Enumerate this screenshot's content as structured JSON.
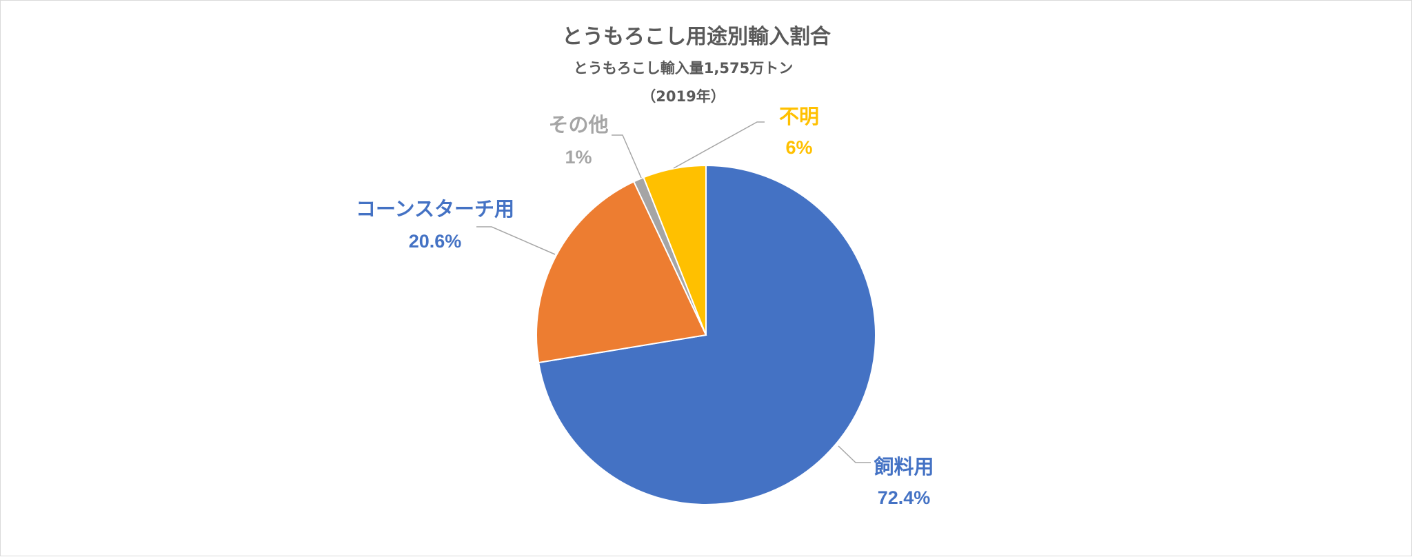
{
  "chart_data": {
    "type": "pie",
    "title": "とうもろこし用途別輸入割合",
    "subtitle": "とうもろこし輸入量1,575万トン",
    "subtitle2": "（2019年）",
    "start_angle_deg": 0,
    "direction": "clockwise",
    "slices": [
      {
        "label": "飼料用",
        "value": 72.4,
        "display": "72.4%",
        "color": "#4472C4",
        "label_color": "#4472C4"
      },
      {
        "label": "コーンスターチ用",
        "value": 20.6,
        "display": "20.6%",
        "color": "#ED7D31",
        "label_color": "#4472C4"
      },
      {
        "label": "その他",
        "value": 1,
        "display": "1%",
        "color": "#A5A5A5",
        "label_color": "#A5A5A5"
      },
      {
        "label": "不明",
        "value": 6,
        "display": "6%",
        "color": "#FFC000",
        "label_color": "#FFC000"
      }
    ],
    "legend": "none"
  }
}
